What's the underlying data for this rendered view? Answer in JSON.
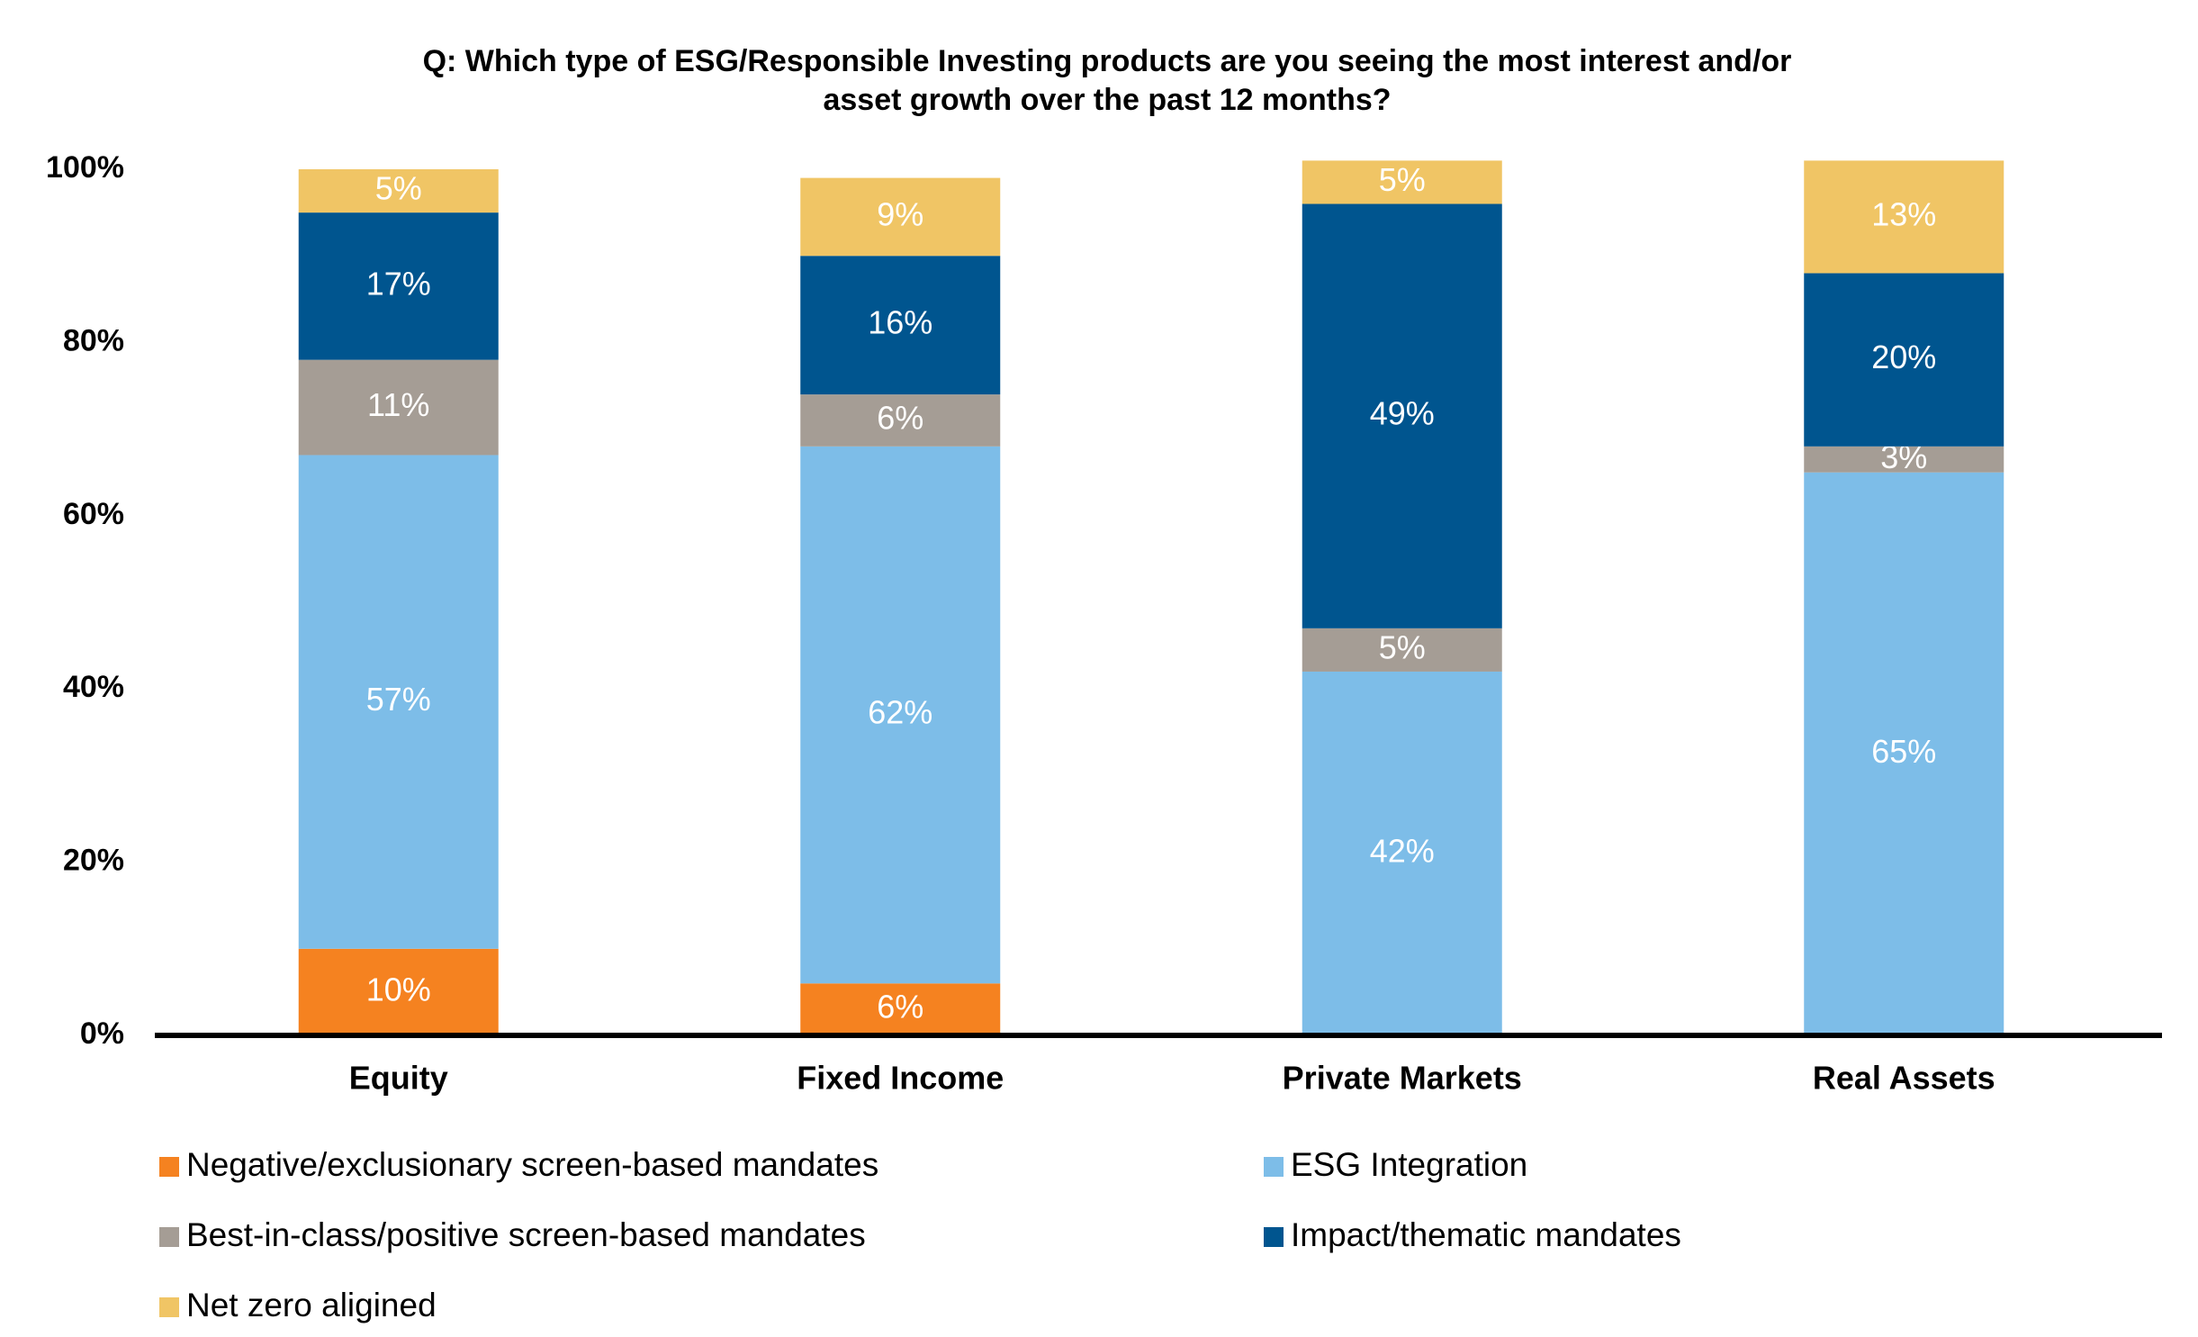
{
  "chart_data": {
    "type": "stacked_bar",
    "title": [
      "Q: Which type of ESG/Responsible Investing products are you seeing the most interest and/or",
      "asset growth over the past 12 months?"
    ],
    "categories": [
      "Equity",
      "Fixed Income",
      "Private Markets",
      "Real Assets"
    ],
    "series": [
      {
        "name": "Negative/exclusionary screen-based mandates",
        "color": "#f58220",
        "values": [
          10,
          6,
          null,
          null
        ],
        "value_labels": [
          "10%",
          "6%",
          null,
          null
        ]
      },
      {
        "name": "ESG Integration",
        "color": "#7dbde8",
        "values": [
          57,
          62,
          42,
          65
        ],
        "value_labels": [
          "57%",
          "62%",
          "42%",
          "65%"
        ]
      },
      {
        "name": "Best-in-class/positive screen-based mandates",
        "color": "#a59d95",
        "values": [
          11,
          6,
          5,
          3
        ],
        "value_labels": [
          "11%",
          "6%",
          "5%",
          "3%"
        ]
      },
      {
        "name": "Impact/thematic mandates",
        "color": "#00558f",
        "values": [
          17,
          16,
          49,
          20
        ],
        "value_labels": [
          "17%",
          "16%",
          "49%",
          "20%"
        ]
      },
      {
        "name": "Net zero aligined",
        "color": "#f0c565",
        "values": [
          5,
          9,
          5,
          13
        ],
        "value_labels": [
          "5%",
          "9%",
          "5%",
          "13%"
        ]
      }
    ],
    "ylim": [
      0,
      100
    ],
    "yticks": [
      {
        "value": 0,
        "label": "0%"
      },
      {
        "value": 20,
        "label": "20%"
      },
      {
        "value": 40,
        "label": "40%"
      },
      {
        "value": 60,
        "label": "60%"
      },
      {
        "value": 80,
        "label": "80%"
      },
      {
        "value": 100,
        "label": "100%"
      }
    ],
    "grid": false
  }
}
